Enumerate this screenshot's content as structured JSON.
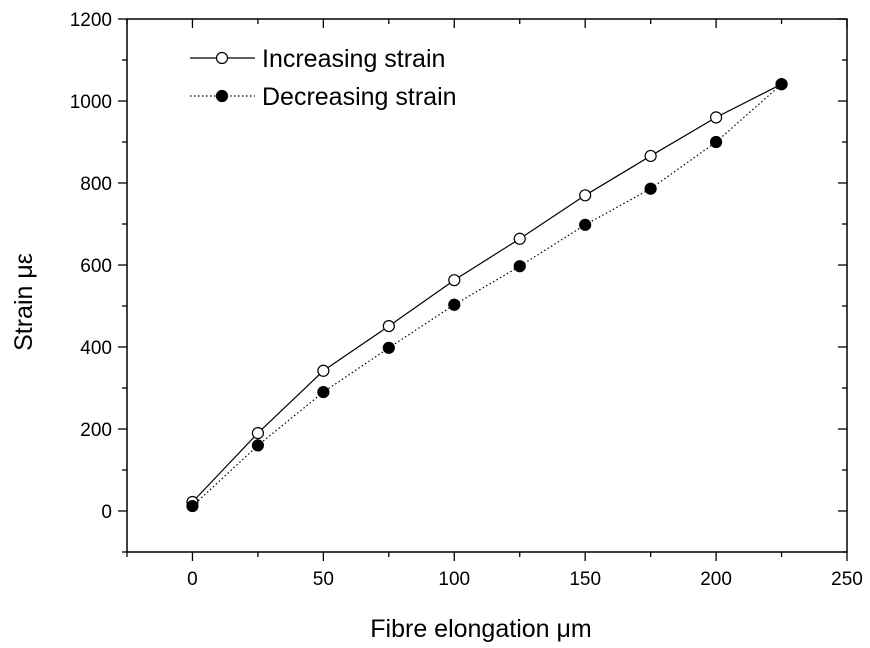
{
  "chart_data": {
    "type": "line",
    "title": "",
    "xlabel": "Fibre elongation μm",
    "ylabel": "Strain με",
    "xlim": [
      -25,
      250
    ],
    "ylim": [
      -100,
      1200
    ],
    "x_major_ticks": [
      0,
      50,
      100,
      150,
      200,
      250
    ],
    "x_minor_ticks": [
      -25,
      25,
      75,
      125,
      175,
      225
    ],
    "y_major_ticks": [
      0,
      200,
      400,
      600,
      800,
      1000,
      1200
    ],
    "y_minor_ticks": [
      -100,
      100,
      300,
      500,
      700,
      900,
      1100
    ],
    "x_tick_labels": [
      "0",
      "50",
      "100",
      "150",
      "200",
      "250"
    ],
    "y_tick_labels": [
      "0",
      "200",
      "400",
      "600",
      "800",
      "1000",
      "1200"
    ],
    "grid": false,
    "legend_position": "top-left",
    "x": [
      0,
      25,
      50,
      75,
      100,
      125,
      150,
      175,
      200,
      225
    ],
    "series": [
      {
        "name": "Increasing strain",
        "marker": "open-circle",
        "line": "solid",
        "color": "#000000",
        "values": [
          22,
          190,
          342,
          451,
          563,
          664,
          770,
          866,
          960,
          1041
        ]
      },
      {
        "name": "Decreasing strain",
        "marker": "filled-circle",
        "line": "dotted",
        "color": "#000000",
        "values": [
          12,
          160,
          290,
          398,
          503,
          597,
          698,
          786,
          900,
          1041
        ]
      }
    ]
  }
}
